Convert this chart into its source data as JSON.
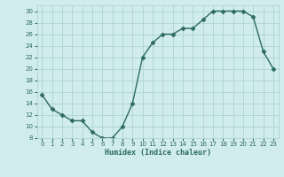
{
  "x": [
    0,
    1,
    2,
    3,
    4,
    5,
    6,
    7,
    8,
    9,
    10,
    11,
    12,
    13,
    14,
    15,
    16,
    17,
    18,
    19,
    20,
    21,
    22,
    23
  ],
  "y": [
    15.5,
    13,
    12,
    11,
    11,
    9,
    8,
    8,
    10,
    14,
    22,
    24.5,
    26,
    26,
    27,
    27,
    28.5,
    30,
    30,
    30,
    30,
    29,
    23,
    20
  ],
  "line_color": "#2d6b5e",
  "marker": "D",
  "marker_size": 2.5,
  "bg_color": "#d0ecec",
  "grid_color": "#aed4d4",
  "xlabel": "Humidex (Indice chaleur)",
  "ylim": [
    8,
    31
  ],
  "yticks": [
    8,
    10,
    12,
    14,
    16,
    18,
    20,
    22,
    24,
    26,
    28,
    30
  ],
  "xlim": [
    -0.5,
    23.5
  ],
  "xticks": [
    0,
    1,
    2,
    3,
    4,
    5,
    6,
    7,
    8,
    9,
    10,
    11,
    12,
    13,
    14,
    15,
    16,
    17,
    18,
    19,
    20,
    21,
    22,
    23
  ]
}
